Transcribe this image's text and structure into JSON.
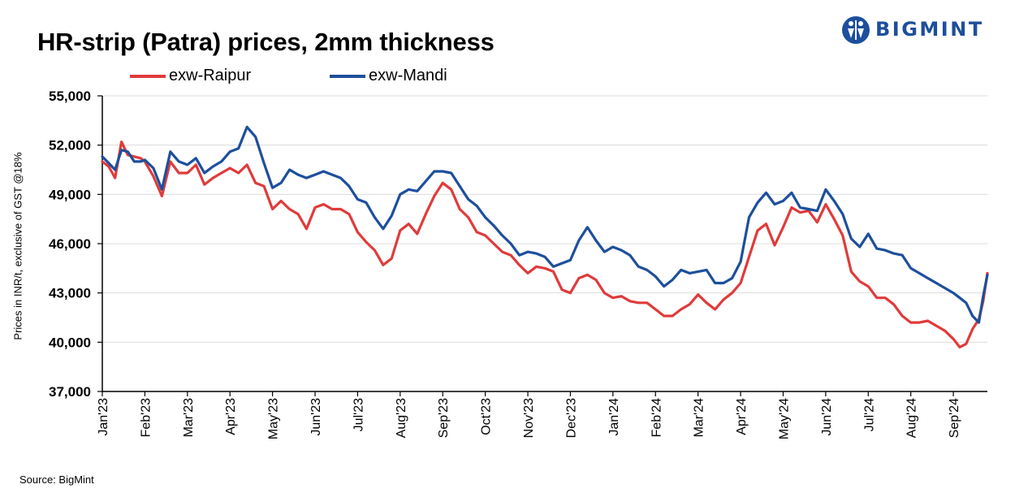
{
  "title": "HR-strip (Patra) prices, 2mm thickness",
  "logo": {
    "text": "BIGMINT",
    "color": "#1d4f9c"
  },
  "source": "Source: BigMint",
  "chart_data": {
    "type": "line",
    "title": "HR-strip (Patra) prices, 2mm thickness",
    "xlabel": "",
    "ylabel": "Prices in INR/t, exclusive of GST @18%",
    "ylim": [
      37000,
      55000
    ],
    "yticks": [
      37000,
      40000,
      43000,
      46000,
      49000,
      52000,
      55000
    ],
    "ytick_labels": [
      "37,000",
      "40,000",
      "43,000",
      "46,000",
      "49,000",
      "52,000",
      "55,000"
    ],
    "grid": "horizontal",
    "legend_position": "top-left",
    "x_unit": "months since Jan'23",
    "xlim": [
      0,
      20.8
    ],
    "x_tick_labels": [
      "Jan'23",
      "Feb'23",
      "Mar'23",
      "Apr'23",
      "May'23",
      "Jun'23",
      "Jul'23",
      "Aug'23",
      "Sep'23",
      "Oct'23",
      "Nov'23",
      "Dec'23",
      "Jan'24",
      "Feb'24",
      "Mar'24",
      "Apr'24",
      "May'24",
      "Jun'24",
      "Jul'24",
      "Aug'24",
      "Sep'24"
    ],
    "series": [
      {
        "name": "exw-Raipur",
        "color": "#e03b3b",
        "x": [
          0,
          0.15,
          0.3,
          0.45,
          0.6,
          0.75,
          0.9,
          1.0,
          1.2,
          1.4,
          1.6,
          1.8,
          2.0,
          2.2,
          2.4,
          2.6,
          2.8,
          3.0,
          3.2,
          3.4,
          3.6,
          3.8,
          4.0,
          4.2,
          4.4,
          4.6,
          4.8,
          5.0,
          5.2,
          5.4,
          5.6,
          5.8,
          6.0,
          6.2,
          6.4,
          6.6,
          6.8,
          7.0,
          7.2,
          7.4,
          7.6,
          7.8,
          8.0,
          8.2,
          8.4,
          8.6,
          8.8,
          9.0,
          9.2,
          9.4,
          9.6,
          9.8,
          10.0,
          10.2,
          10.4,
          10.6,
          10.8,
          11.0,
          11.2,
          11.4,
          11.6,
          11.8,
          12.0,
          12.2,
          12.4,
          12.6,
          12.8,
          13.0,
          13.2,
          13.4,
          13.6,
          13.8,
          14.0,
          14.2,
          14.4,
          14.6,
          14.8,
          15.0,
          15.2,
          15.4,
          15.6,
          15.8,
          16.0,
          16.2,
          16.4,
          16.6,
          16.8,
          17.0,
          17.2,
          17.4,
          17.6,
          17.8,
          18.0,
          18.2,
          18.4,
          18.6,
          18.8,
          19.0,
          19.2,
          19.4,
          19.6,
          19.8,
          20.0,
          20.15,
          20.3,
          20.45,
          20.6,
          20.7,
          20.8
        ],
        "values": [
          51000,
          50700,
          50000,
          52200,
          51400,
          51300,
          51200,
          51000,
          50100,
          48900,
          51000,
          50300,
          50300,
          50800,
          49600,
          50000,
          50300,
          50600,
          50300,
          50800,
          49700,
          49500,
          48100,
          48600,
          48100,
          47800,
          46900,
          48200,
          48400,
          48100,
          48100,
          47800,
          46700,
          46100,
          45600,
          44700,
          45100,
          46800,
          47200,
          46600,
          47800,
          48900,
          49700,
          49300,
          48100,
          47600,
          46700,
          46500,
          46000,
          45500,
          45300,
          44700,
          44200,
          44600,
          44500,
          44300,
          43200,
          43000,
          43900,
          44100,
          43800,
          43000,
          42700,
          42800,
          42500,
          42400,
          42400,
          42000,
          41600,
          41600,
          42000,
          42300,
          42900,
          42400,
          42000,
          42600,
          43000,
          43600,
          45200,
          46800,
          47200,
          45900,
          47000,
          48200,
          47900,
          48000,
          47300,
          48400,
          47500,
          46500,
          44300,
          43700,
          43400,
          42700,
          42700,
          42300,
          41600,
          41200,
          41200,
          41300,
          41000,
          40700,
          40200,
          39700,
          39900,
          40800,
          41400,
          42500,
          44200
        ]
      },
      {
        "name": "exw-Mandi",
        "color": "#1d4f9c",
        "x": [
          0,
          0.15,
          0.3,
          0.45,
          0.6,
          0.75,
          0.9,
          1.0,
          1.2,
          1.4,
          1.6,
          1.8,
          2.0,
          2.2,
          2.4,
          2.6,
          2.8,
          3.0,
          3.2,
          3.4,
          3.6,
          3.8,
          4.0,
          4.2,
          4.4,
          4.6,
          4.8,
          5.0,
          5.2,
          5.4,
          5.6,
          5.8,
          6.0,
          6.2,
          6.4,
          6.6,
          6.8,
          7.0,
          7.2,
          7.4,
          7.6,
          7.8,
          8.0,
          8.2,
          8.4,
          8.6,
          8.8,
          9.0,
          9.2,
          9.4,
          9.6,
          9.8,
          10.0,
          10.2,
          10.4,
          10.6,
          10.8,
          11.0,
          11.2,
          11.4,
          11.6,
          11.8,
          12.0,
          12.2,
          12.4,
          12.6,
          12.8,
          13.0,
          13.2,
          13.4,
          13.6,
          13.8,
          14.0,
          14.2,
          14.4,
          14.6,
          14.8,
          15.0,
          15.2,
          15.4,
          15.6,
          15.8,
          16.0,
          16.2,
          16.4,
          16.6,
          16.8,
          17.0,
          17.2,
          17.4,
          17.6,
          17.8,
          18.0,
          18.2,
          18.4,
          18.6,
          18.8,
          19.0,
          19.2,
          19.4,
          19.6,
          19.8,
          20.0,
          20.15,
          20.3,
          20.45,
          20.6,
          20.7,
          20.8
        ],
        "values": [
          51300,
          50900,
          50500,
          51700,
          51600,
          51000,
          51000,
          51100,
          50600,
          49300,
          51600,
          51000,
          50800,
          51200,
          50300,
          50700,
          51000,
          51600,
          51800,
          53100,
          52500,
          50900,
          49400,
          49700,
          50500,
          50200,
          50000,
          50200,
          50400,
          50200,
          50000,
          49500,
          48700,
          48500,
          47600,
          46900,
          47700,
          49000,
          49300,
          49200,
          49800,
          50400,
          50400,
          50300,
          49500,
          48700,
          48300,
          47600,
          47100,
          46500,
          46000,
          45300,
          45500,
          45400,
          45200,
          44600,
          44800,
          45000,
          46200,
          47000,
          46200,
          45500,
          45800,
          45600,
          45300,
          44600,
          44400,
          44000,
          43400,
          43800,
          44400,
          44200,
          44300,
          44400,
          43600,
          43600,
          43900,
          44900,
          47600,
          48500,
          49100,
          48400,
          48600,
          49100,
          48200,
          48100,
          48000,
          49300,
          48600,
          47800,
          46300,
          45800,
          46600,
          45700,
          45600,
          45400,
          45300,
          44500,
          44200,
          43900,
          43600,
          43300,
          43000,
          42700,
          42400,
          41600,
          41200,
          42800,
          44100
        ]
      }
    ]
  }
}
